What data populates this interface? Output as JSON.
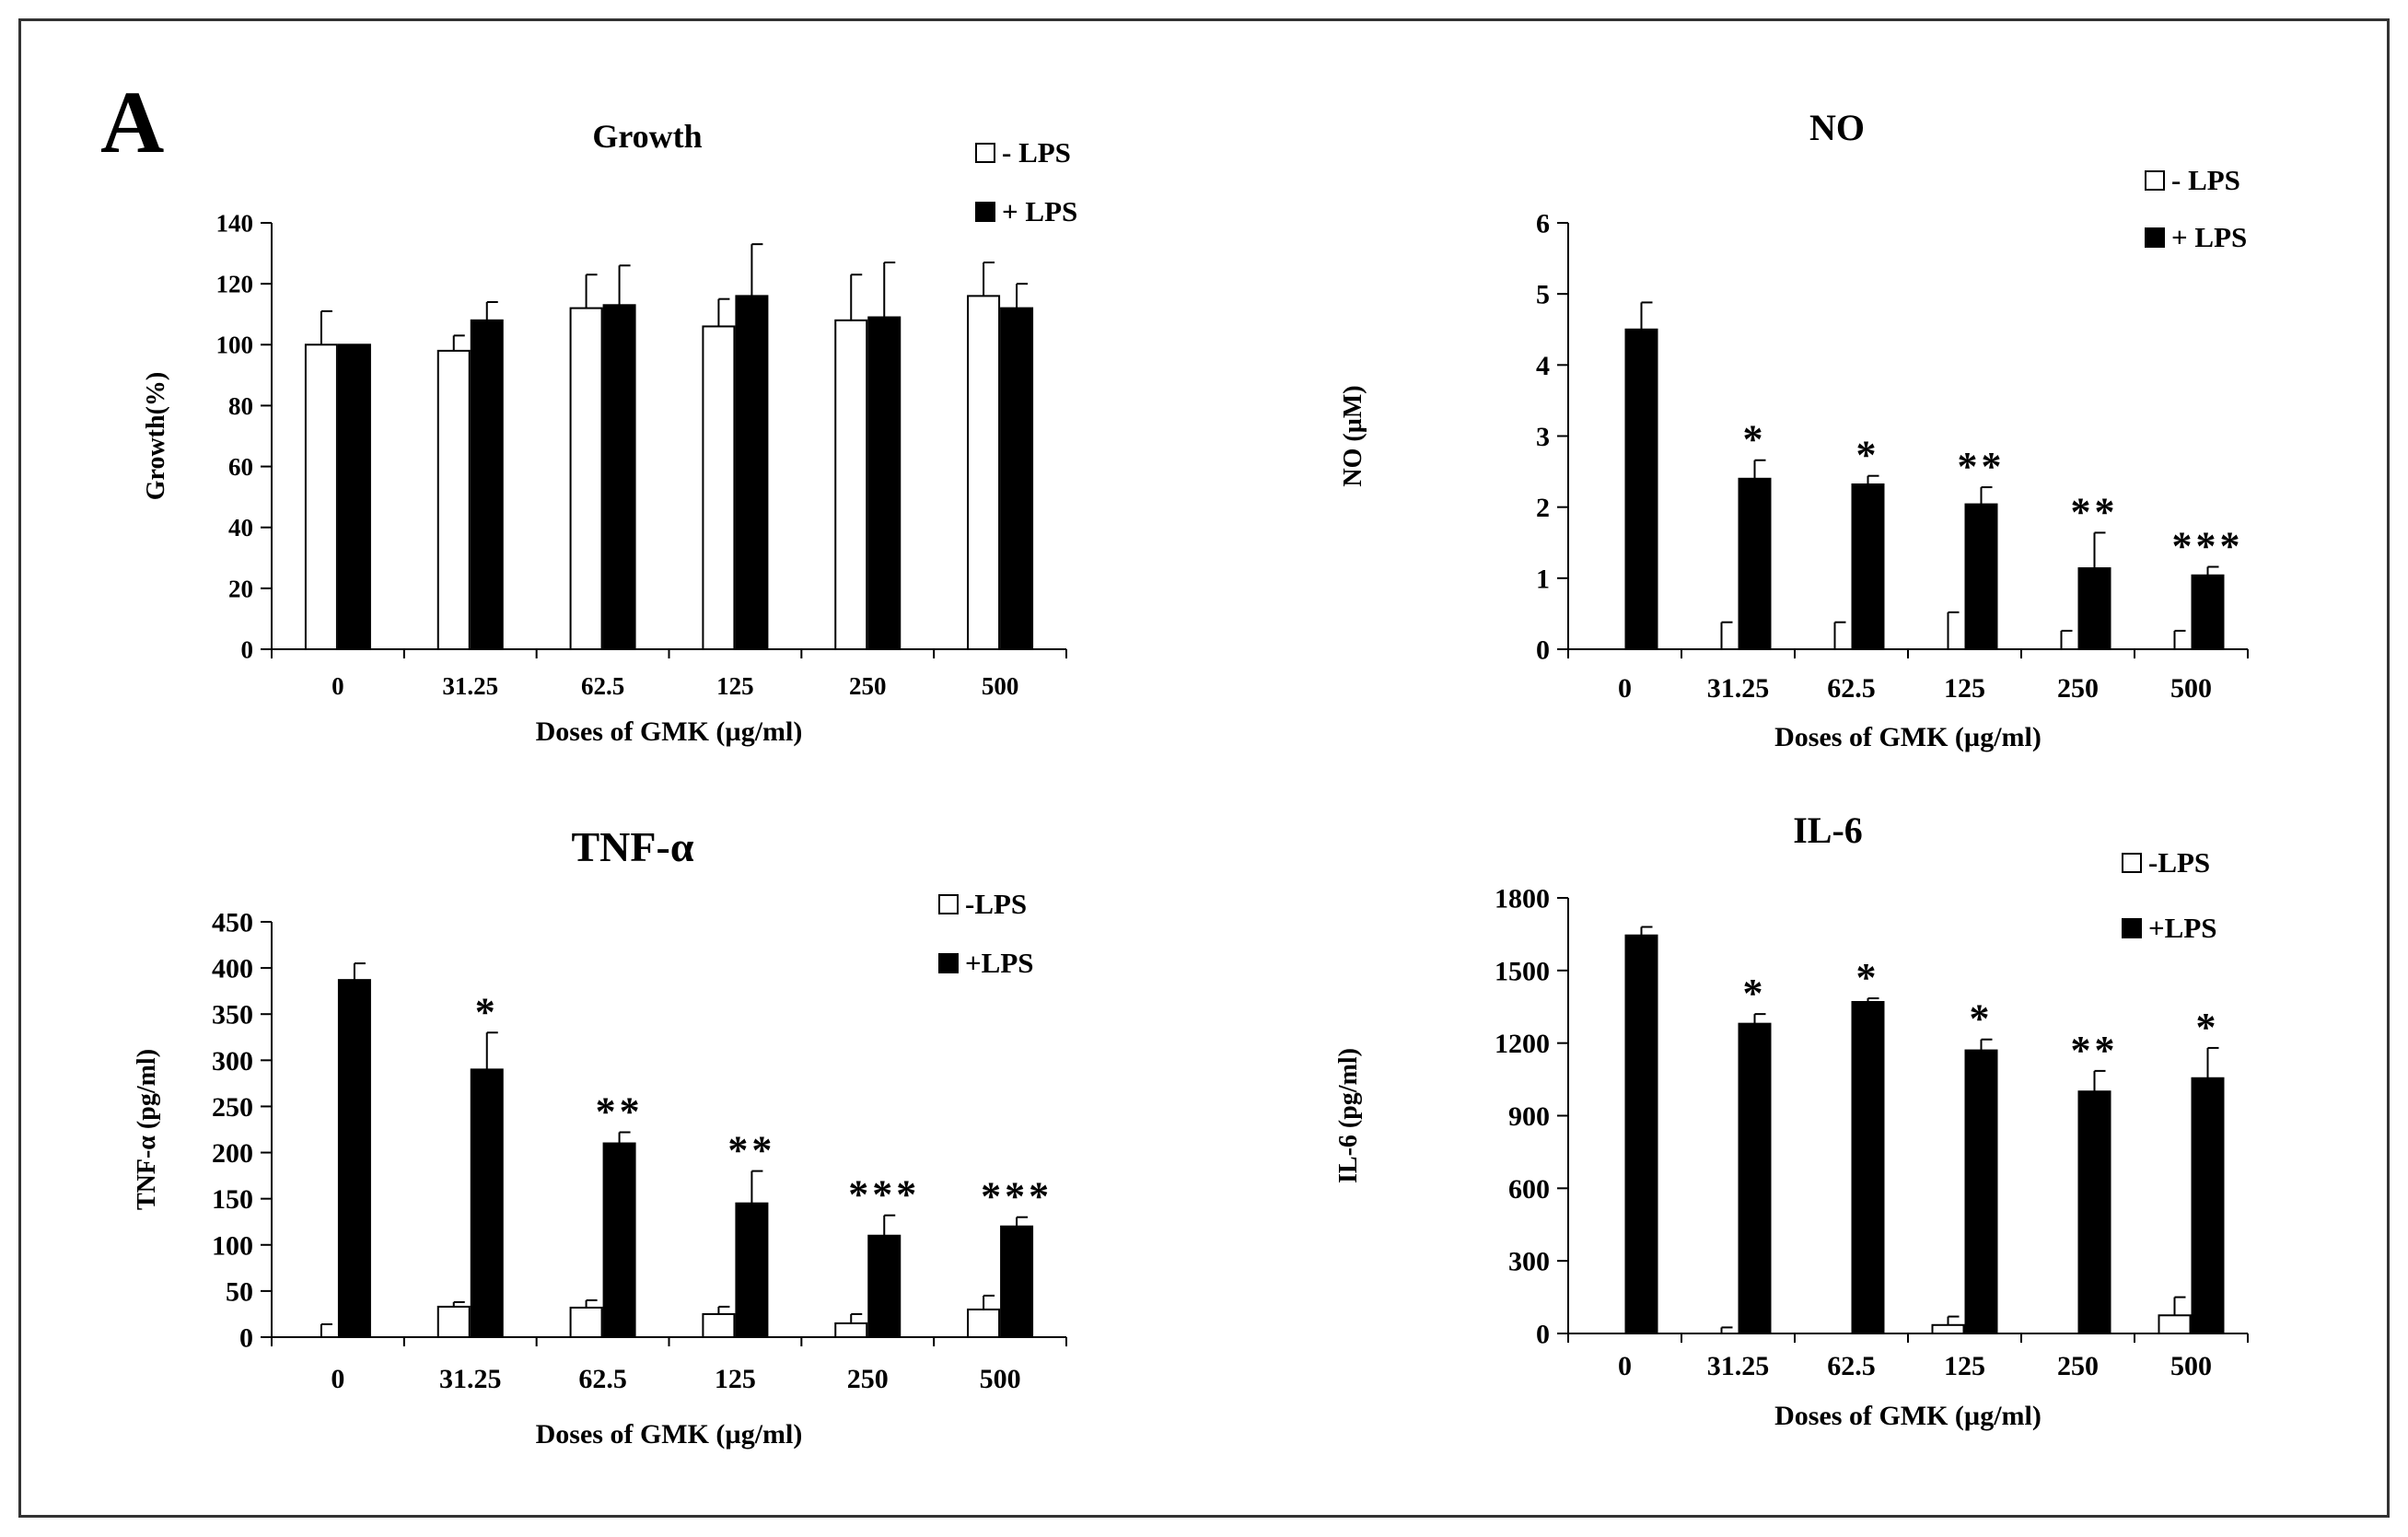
{
  "panel_label": "A",
  "chart_data": [
    {
      "type": "bar",
      "title": "Growth",
      "xlabel": "Doses of GMK (µg/ml)",
      "ylabel": "Growth(%)",
      "ylim": [
        0,
        140
      ],
      "yticks": [
        0,
        20,
        40,
        60,
        80,
        100,
        120,
        140
      ],
      "categories": [
        "0",
        "31.25",
        "62.5",
        "125",
        "250",
        "500"
      ],
      "legend": [
        "- LPS",
        "+ LPS"
      ],
      "series": [
        {
          "name": "- LPS",
          "values": [
            100,
            98,
            112,
            106,
            108,
            116
          ],
          "errors": [
            11,
            5,
            11,
            9,
            15,
            11
          ]
        },
        {
          "name": "+ LPS",
          "values": [
            100,
            108,
            113,
            116,
            109,
            112
          ],
          "errors": [
            0,
            6,
            13,
            17,
            18,
            8
          ]
        }
      ],
      "significance": [
        "",
        "",
        "",
        "",
        "",
        ""
      ]
    },
    {
      "type": "bar",
      "title": "NO",
      "xlabel": "Doses of GMK (µg/ml)",
      "ylabel": "NO (µM)",
      "ylim": [
        0,
        6
      ],
      "yticks": [
        0,
        1,
        2,
        3,
        4,
        5,
        6
      ],
      "categories": [
        "0",
        "31.25",
        "62.5",
        "125",
        "250",
        "500"
      ],
      "legend": [
        "- LPS",
        "+ LPS"
      ],
      "series": [
        {
          "name": "- LPS",
          "values": [
            0,
            0,
            0,
            0,
            0,
            0
          ],
          "errors": [
            0,
            0.38,
            0.38,
            0.52,
            0.26,
            0.26
          ]
        },
        {
          "name": "+ LPS",
          "values": [
            4.5,
            2.4,
            2.32,
            2.04,
            1.14,
            1.04
          ],
          "errors": [
            0.38,
            0.26,
            0.12,
            0.24,
            0.5,
            0.12
          ]
        }
      ],
      "significance": [
        "",
        "*",
        "*",
        "**",
        "**",
        "***"
      ]
    },
    {
      "type": "bar",
      "title": "TNF-α",
      "xlabel": "Doses of GMK (µg/ml)",
      "ylabel": "TNF-α  (pg/ml)",
      "ylim": [
        0,
        450
      ],
      "yticks": [
        0,
        50,
        100,
        150,
        200,
        250,
        300,
        350,
        400,
        450
      ],
      "categories": [
        "0",
        "31.25",
        "62.5",
        "125",
        "250",
        "500"
      ],
      "legend": [
        "-LPS",
        "+LPS"
      ],
      "series": [
        {
          "name": "-LPS",
          "values": [
            0,
            33,
            32,
            25,
            15,
            30
          ],
          "errors": [
            14,
            5,
            8,
            8,
            10,
            15
          ]
        },
        {
          "name": "+LPS",
          "values": [
            387,
            290,
            210,
            145,
            110,
            120
          ],
          "errors": [
            18,
            40,
            12,
            35,
            22,
            10
          ]
        }
      ],
      "significance": [
        "",
        "*",
        "**",
        "**",
        "***",
        "***"
      ]
    },
    {
      "type": "bar",
      "title": "IL-6",
      "xlabel": "Doses of GMK (µg/ml)",
      "ylabel": "IL-6 (pg/ml)",
      "ylim": [
        0,
        1800
      ],
      "yticks": [
        0,
        300,
        600,
        900,
        1200,
        1500,
        1800
      ],
      "categories": [
        "0",
        "31.25",
        "62.5",
        "125",
        "250",
        "500"
      ],
      "legend": [
        "-LPS",
        "+LPS"
      ],
      "series": [
        {
          "name": "-LPS",
          "values": [
            0,
            0,
            0,
            35,
            0,
            75
          ],
          "errors": [
            0,
            25,
            0,
            35,
            0,
            75
          ]
        },
        {
          "name": "+LPS",
          "values": [
            1645,
            1280,
            1370,
            1170,
            1000,
            1055
          ],
          "errors": [
            35,
            40,
            15,
            45,
            85,
            125
          ]
        }
      ],
      "significance": [
        "",
        "*",
        "*",
        "*",
        "**",
        "*"
      ]
    }
  ]
}
